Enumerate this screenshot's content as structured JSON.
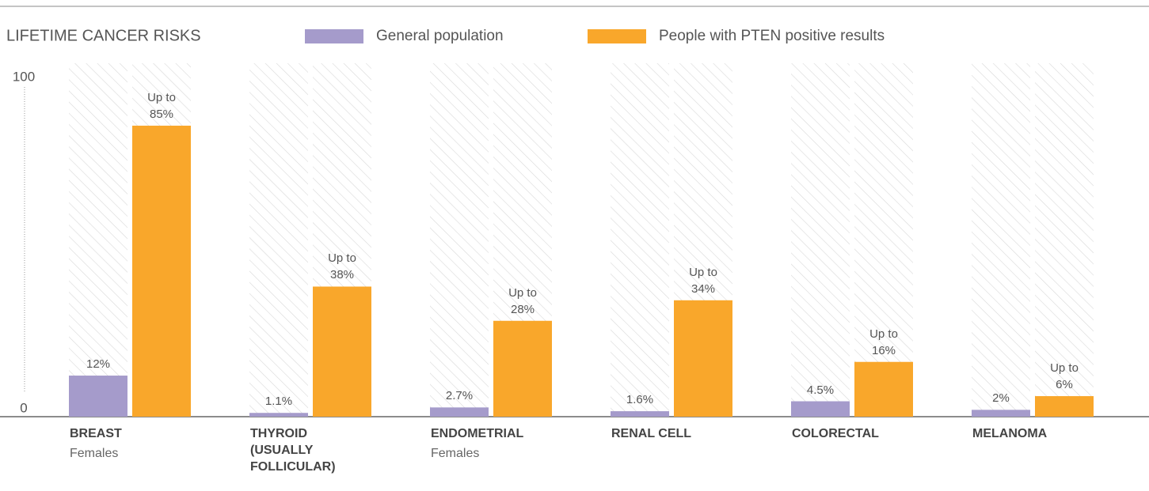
{
  "chart_data": {
    "type": "bar",
    "title": "LIFETIME CANCER RISKS",
    "categories": [
      "BREAST",
      "THYROID (USUALLY FOLLICULAR)",
      "ENDOMETRIAL",
      "RENAL CELL",
      "COLORECTAL",
      "MELANOMA"
    ],
    "category_notes": [
      "Females",
      null,
      "Females",
      null,
      null,
      null
    ],
    "series": [
      {
        "name": "General population",
        "color": "#a59bcb",
        "values": [
          12,
          1.1,
          2.7,
          1.6,
          4.5,
          2
        ],
        "value_labels": [
          "12%",
          "1.1%",
          "2.7%",
          "1.6%",
          "4.5%",
          "2%"
        ]
      },
      {
        "name": "People with PTEN positive results",
        "color": "#f9a72b",
        "values": [
          85,
          38,
          28,
          34,
          16,
          6
        ],
        "value_labels": [
          "Up to 85%",
          "Up to 38%",
          "Up to 28%",
          "Up to 34%",
          "Up to 16%",
          "Up to 6%"
        ]
      }
    ],
    "ylim": [
      0,
      100
    ],
    "yticks": [
      0,
      100
    ],
    "grid": false,
    "legend": "top"
  }
}
